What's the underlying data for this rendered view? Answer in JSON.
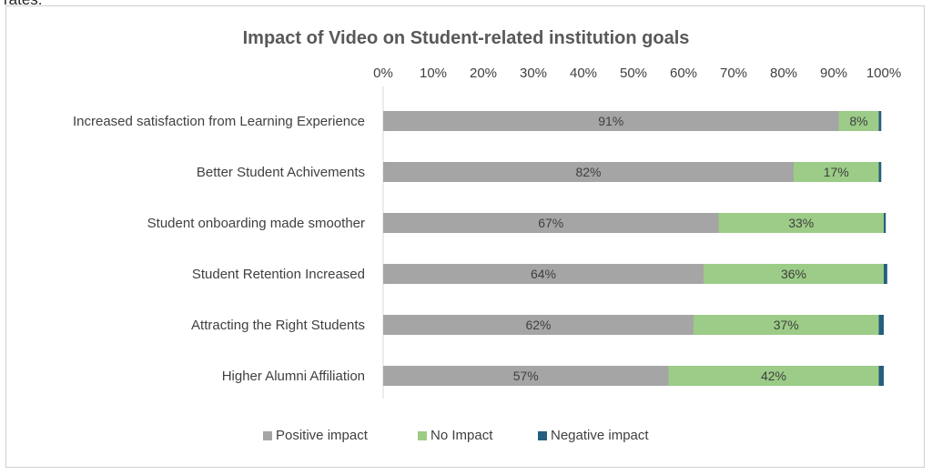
{
  "page_fragment": "rates.",
  "chart_data": {
    "type": "bar",
    "orientation": "horizontal",
    "stacked": true,
    "title": "Impact of Video on Student-related institution goals",
    "xlabel": "",
    "ylabel": "",
    "xlim": [
      0,
      100
    ],
    "x_ticks": [
      "0%",
      "10%",
      "20%",
      "30%",
      "40%",
      "50%",
      "60%",
      "70%",
      "80%",
      "90%",
      "100%"
    ],
    "x_axis_position": "top",
    "gridlines": false,
    "legend_position": "bottom",
    "categories": [
      "Increased satisfaction from Learning Experience",
      "Better Student Achivements",
      "Student onboarding made smoother",
      "Student Retention Increased",
      "Attracting the Right Students",
      "Higher Alumni Affiliation"
    ],
    "series": [
      {
        "name": "Positive impact",
        "color": "#a5a5a5",
        "values": [
          91,
          82,
          67,
          64,
          62,
          57
        ],
        "labels": [
          "91%",
          "82%",
          "67%",
          "64%",
          "62%",
          "57%"
        ]
      },
      {
        "name": "No Impact",
        "color": "#9ccc87",
        "values": [
          8,
          17,
          33,
          36,
          37,
          42
        ],
        "labels": [
          "8%",
          "17%",
          "33%",
          "36%",
          "37%",
          "42%"
        ]
      },
      {
        "name": "Negative impact",
        "color": "#255e7e",
        "values": [
          0.5,
          0.5,
          0.4,
          0.7,
          1,
          1
        ],
        "labels": []
      }
    ]
  }
}
